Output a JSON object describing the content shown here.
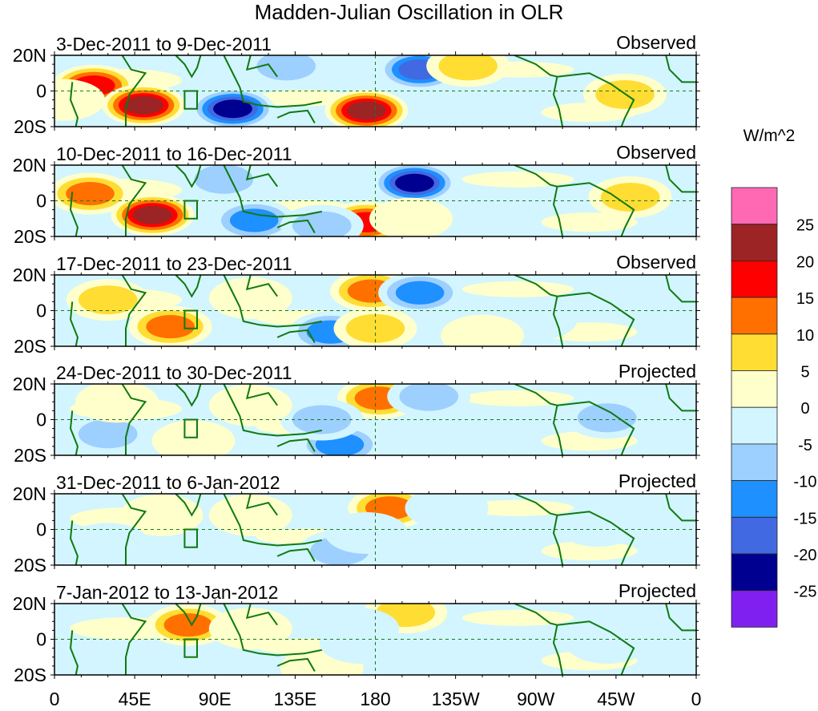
{
  "chart_data": {
    "type": "heatmap",
    "title": "Madden-Julian Oscillation in OLR",
    "units": "W/m^2",
    "x_ticks": [
      "0",
      "45E",
      "90E",
      "135E",
      "180",
      "135W",
      "90W",
      "45W",
      "0"
    ],
    "x_tick_lons": [
      0,
      45,
      90,
      135,
      180,
      225,
      270,
      315,
      360
    ],
    "y_ticks": [
      "20N",
      "0",
      "20S"
    ],
    "y_tick_lats": [
      20,
      0,
      -20
    ],
    "xlim": [
      0,
      360
    ],
    "ylim": [
      -20,
      20
    ],
    "colorbar": {
      "levels": [
        25,
        20,
        15,
        10,
        5,
        0,
        -5,
        -10,
        -15,
        -20,
        -25
      ],
      "colors": [
        "#ff69b4",
        "#9c2424",
        "#ff0000",
        "#ff7000",
        "#ffdd33",
        "#ffffcc",
        "#d2f5ff",
        "#9dcfff",
        "#1e90ff",
        "#4169e1",
        "#000090",
        "#8020f0"
      ]
    },
    "panels": [
      {
        "date_range": "3-Dec-2011 to 9-Dec-2011",
        "status": "Observed",
        "anomalies": [
          {
            "lon": 22,
            "lat": 3,
            "value": 20
          },
          {
            "lon": 50,
            "lat": -8,
            "value": 25
          },
          {
            "lon": 100,
            "lat": -10,
            "value": -25
          },
          {
            "lon": 130,
            "lat": 14,
            "value": -10
          },
          {
            "lon": 175,
            "lat": -11,
            "value": 25
          },
          {
            "lon": 205,
            "lat": 12,
            "value": -20
          },
          {
            "lon": 232,
            "lat": 14,
            "value": 10
          },
          {
            "lon": 320,
            "lat": -2,
            "value": 10
          },
          {
            "lon": 5,
            "lat": -5,
            "value": 5
          },
          {
            "lon": 250,
            "lat": -8,
            "value": -5
          }
        ]
      },
      {
        "date_range": "10-Dec-2011 to 16-Dec-2011",
        "status": "Observed",
        "anomalies": [
          {
            "lon": 20,
            "lat": 4,
            "value": 15
          },
          {
            "lon": 55,
            "lat": -8,
            "value": 25
          },
          {
            "lon": 112,
            "lat": -11,
            "value": -15
          },
          {
            "lon": 95,
            "lat": 12,
            "value": -10
          },
          {
            "lon": 175,
            "lat": -12,
            "value": 20
          },
          {
            "lon": 202,
            "lat": 10,
            "value": -25
          },
          {
            "lon": 150,
            "lat": -14,
            "value": -10
          },
          {
            "lon": 323,
            "lat": 2,
            "value": 10
          },
          {
            "lon": 250,
            "lat": -6,
            "value": -5
          },
          {
            "lon": 200,
            "lat": -10,
            "value": 5
          }
        ]
      },
      {
        "date_range": "17-Dec-2011 to 23-Dec-2011",
        "status": "Observed",
        "anomalies": [
          {
            "lon": 65,
            "lat": -9,
            "value": 15
          },
          {
            "lon": 178,
            "lat": 11,
            "value": 15
          },
          {
            "lon": 205,
            "lat": 10,
            "value": -15
          },
          {
            "lon": 155,
            "lat": -12,
            "value": -15
          },
          {
            "lon": 30,
            "lat": 6,
            "value": 10
          },
          {
            "lon": 110,
            "lat": 7,
            "value": 5
          },
          {
            "lon": 270,
            "lat": -5,
            "value": -5
          },
          {
            "lon": 180,
            "lat": -10,
            "value": 10
          },
          {
            "lon": 240,
            "lat": -14,
            "value": 5
          }
        ]
      },
      {
        "date_range": "24-Dec-2011 to 30-Dec-2011",
        "status": "Projected",
        "anomalies": [
          {
            "lon": 182,
            "lat": 12,
            "value": 15
          },
          {
            "lon": 210,
            "lat": 13,
            "value": -10
          },
          {
            "lon": 160,
            "lat": -14,
            "value": -15
          },
          {
            "lon": 150,
            "lat": 0,
            "value": -10
          },
          {
            "lon": 310,
            "lat": 1,
            "value": -10
          },
          {
            "lon": 78,
            "lat": -12,
            "value": 5
          },
          {
            "lon": 30,
            "lat": -8,
            "value": -10
          },
          {
            "lon": 35,
            "lat": 10,
            "value": 5
          },
          {
            "lon": 110,
            "lat": 8,
            "value": 5
          }
        ]
      },
      {
        "date_range": "31-Dec-2011 to 6-Jan-2012",
        "status": "Projected",
        "anomalies": [
          {
            "lon": 188,
            "lat": 12,
            "value": 15
          },
          {
            "lon": 160,
            "lat": -12,
            "value": -10
          },
          {
            "lon": 175,
            "lat": -2,
            "value": -5
          },
          {
            "lon": 60,
            "lat": 8,
            "value": 5
          },
          {
            "lon": 305,
            "lat": 2,
            "value": -5
          },
          {
            "lon": 110,
            "lat": 8,
            "value": 5
          },
          {
            "lon": 30,
            "lat": -8,
            "value": -5
          },
          {
            "lon": 220,
            "lat": 12,
            "value": -5
          }
        ]
      },
      {
        "date_range": "7-Jan-2012 to 13-Jan-2012",
        "status": "Projected",
        "anomalies": [
          {
            "lon": 75,
            "lat": 8,
            "value": 15
          },
          {
            "lon": 197,
            "lat": 15,
            "value": 10
          },
          {
            "lon": 150,
            "lat": -16,
            "value": 5
          },
          {
            "lon": 170,
            "lat": 6,
            "value": -5
          },
          {
            "lon": 172,
            "lat": -2,
            "value": -5
          },
          {
            "lon": 110,
            "lat": 6,
            "value": 5
          },
          {
            "lon": 310,
            "lat": -2,
            "value": -5
          },
          {
            "lon": 200,
            "lat": -18,
            "value": -5
          }
        ]
      }
    ]
  }
}
